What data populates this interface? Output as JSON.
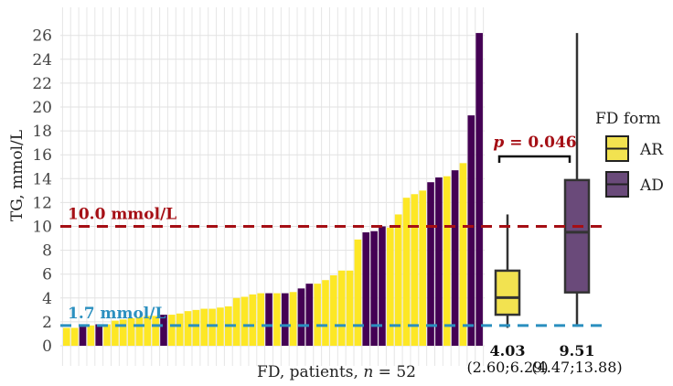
{
  "chart_data": {
    "type": "bar",
    "title": "",
    "ylabel": "TG, mmol/L",
    "xlabel_prefix": "FD, patients, ",
    "xlabel_n": "n",
    "xlabel_suffix": " = 52",
    "ylim": [
      0,
      27
    ],
    "yticks": [
      0,
      2,
      4,
      6,
      8,
      10,
      12,
      14,
      16,
      18,
      20,
      22,
      24,
      26
    ],
    "colors": {
      "AR": "#fde725",
      "AD": "#440154",
      "AR_box": "#f2e250",
      "AD_box": "#6a4a7a",
      "threshold_high": "#a50f15",
      "threshold_low": "#2a8fbf"
    },
    "bars": [
      {
        "v": 1.5,
        "g": "AR"
      },
      {
        "v": 1.5,
        "g": "AR"
      },
      {
        "v": 1.6,
        "g": "AD"
      },
      {
        "v": 1.7,
        "g": "AR"
      },
      {
        "v": 1.8,
        "g": "AD"
      },
      {
        "v": 1.8,
        "g": "AR"
      },
      {
        "v": 2.1,
        "g": "AR"
      },
      {
        "v": 2.2,
        "g": "AR"
      },
      {
        "v": 2.3,
        "g": "AR"
      },
      {
        "v": 2.4,
        "g": "AR"
      },
      {
        "v": 2.5,
        "g": "AR"
      },
      {
        "v": 2.5,
        "g": "AR"
      },
      {
        "v": 2.6,
        "g": "AD"
      },
      {
        "v": 2.6,
        "g": "AR"
      },
      {
        "v": 2.7,
        "g": "AR"
      },
      {
        "v": 2.9,
        "g": "AR"
      },
      {
        "v": 3.0,
        "g": "AR"
      },
      {
        "v": 3.1,
        "g": "AR"
      },
      {
        "v": 3.1,
        "g": "AR"
      },
      {
        "v": 3.2,
        "g": "AR"
      },
      {
        "v": 3.3,
        "g": "AR"
      },
      {
        "v": 4.0,
        "g": "AR"
      },
      {
        "v": 4.1,
        "g": "AR"
      },
      {
        "v": 4.3,
        "g": "AR"
      },
      {
        "v": 4.4,
        "g": "AR"
      },
      {
        "v": 4.4,
        "g": "AD"
      },
      {
        "v": 4.4,
        "g": "AR"
      },
      {
        "v": 4.4,
        "g": "AD"
      },
      {
        "v": 4.5,
        "g": "AR"
      },
      {
        "v": 4.8,
        "g": "AD"
      },
      {
        "v": 5.2,
        "g": "AD"
      },
      {
        "v": 5.2,
        "g": "AR"
      },
      {
        "v": 5.5,
        "g": "AR"
      },
      {
        "v": 5.9,
        "g": "AR"
      },
      {
        "v": 6.3,
        "g": "AR"
      },
      {
        "v": 6.3,
        "g": "AR"
      },
      {
        "v": 8.9,
        "g": "AR"
      },
      {
        "v": 9.5,
        "g": "AD"
      },
      {
        "v": 9.6,
        "g": "AD"
      },
      {
        "v": 10.0,
        "g": "AD"
      },
      {
        "v": 9.9,
        "g": "AR"
      },
      {
        "v": 11.0,
        "g": "AR"
      },
      {
        "v": 12.4,
        "g": "AR"
      },
      {
        "v": 12.7,
        "g": "AR"
      },
      {
        "v": 13.0,
        "g": "AR"
      },
      {
        "v": 13.7,
        "g": "AD"
      },
      {
        "v": 14.1,
        "g": "AD"
      },
      {
        "v": 14.2,
        "g": "AR"
      },
      {
        "v": 14.7,
        "g": "AD"
      },
      {
        "v": 15.3,
        "g": "AR"
      },
      {
        "v": 19.3,
        "g": "AD"
      },
      {
        "v": 26.2,
        "g": "AD"
      }
    ],
    "thresholds": [
      {
        "value": 10.0,
        "label": "10.0 mmol/L",
        "color": "#a50f15"
      },
      {
        "value": 1.7,
        "label": "1.7 mmol/L",
        "color": "#2a8fbf"
      }
    ],
    "boxes": [
      {
        "group": "AR",
        "min": 1.5,
        "q1": 2.6,
        "median": 4.03,
        "q3": 6.29,
        "max": 11.0,
        "median_label": "4.03",
        "iqr_label": "(2.60;6.29)"
      },
      {
        "group": "AD",
        "min": 1.6,
        "q1": 4.47,
        "median": 9.51,
        "q3": 13.88,
        "max": 26.2,
        "median_label": "9.51",
        "iqr_label": "(4.47;13.88)"
      }
    ],
    "pvalue": {
      "symbol": "p",
      "text": " = 0.046"
    },
    "legend": {
      "title": "FD form",
      "position": "right",
      "entries": [
        "AR",
        "AD"
      ]
    }
  }
}
